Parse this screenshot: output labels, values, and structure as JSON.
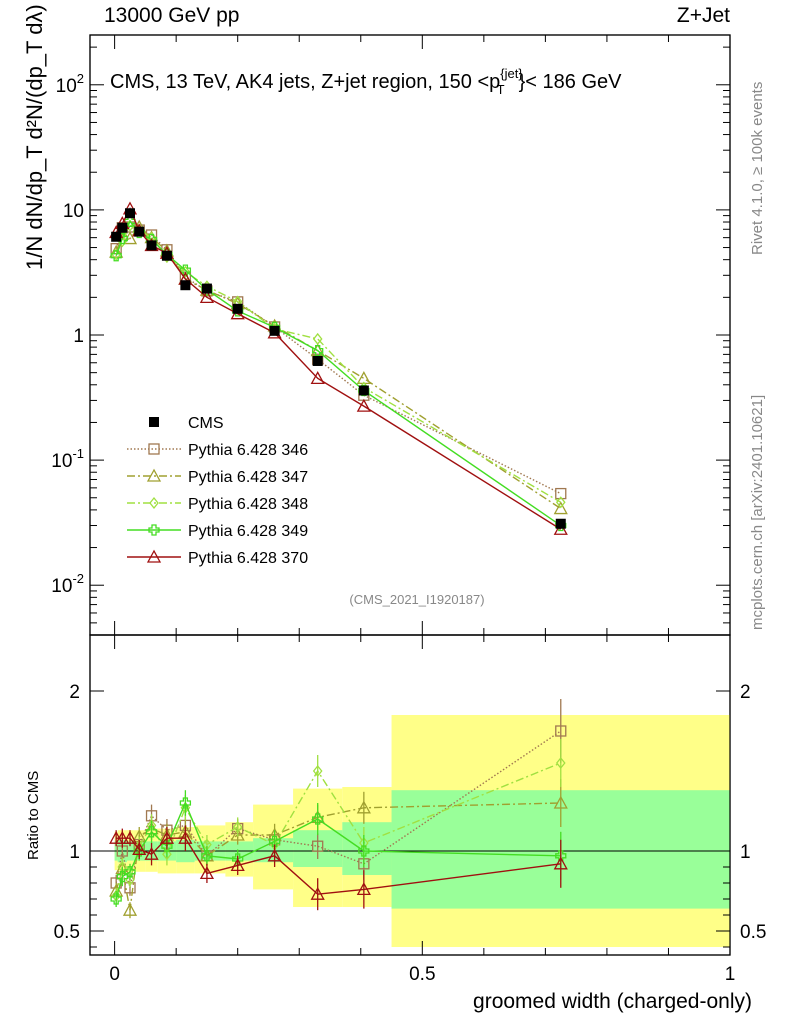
{
  "header": {
    "left": "13000 GeV pp",
    "right": "Z+Jet"
  },
  "side": {
    "rivet": "Rivet 4.1.0, ≥ 100k events",
    "mcplots": "mcplots.cern.ch [arXiv:2401.10621]"
  },
  "watermark": "(CMS_2021_I1920187)",
  "chart_data": {
    "type": "line",
    "title": "CMS, 13 TeV, AK4 jets, Z+jet region, 150 < p_T^{jet} < 186 GeV",
    "xlabel": "groomed width (charged-only)",
    "ylabel": "1/N dN/dp_T  d²N/(dp_T dλ)",
    "ratio_ylabel": "Ratio to CMS",
    "xlim": [
      -0.04,
      1.0
    ],
    "ylim": [
      0.004,
      250
    ],
    "ratio_ylim": [
      0.35,
      2.35
    ],
    "yscale": "log",
    "x_ticks": [
      "0",
      "0.5",
      "1"
    ],
    "y_ticks": [
      "10^{-2}",
      "10^{-1}",
      "1",
      "10",
      "10^{2}"
    ],
    "ratio_ticks": [
      "0.5",
      "1",
      "2"
    ],
    "x": [
      0.0025,
      0.0125,
      0.025,
      0.04,
      0.06,
      0.085,
      0.115,
      0.15,
      0.2,
      0.26,
      0.33,
      0.405,
      0.725
    ],
    "bin_edges": [
      0.0,
      0.005,
      0.02,
      0.03,
      0.05,
      0.07,
      0.1,
      0.13,
      0.18,
      0.225,
      0.29,
      0.37,
      0.45,
      1.0
    ],
    "ratio_band_inner": [
      {
        "lo": 0.94,
        "hi": 1.06
      },
      {
        "lo": 0.93,
        "hi": 1.07
      },
      {
        "lo": 0.94,
        "hi": 1.06
      },
      {
        "lo": 0.94,
        "hi": 1.06
      },
      {
        "lo": 0.94,
        "hi": 1.06
      },
      {
        "lo": 0.94,
        "hi": 1.06
      },
      {
        "lo": 0.93,
        "hi": 1.07
      },
      {
        "lo": 0.94,
        "hi": 1.06
      },
      {
        "lo": 0.94,
        "hi": 1.06
      },
      {
        "lo": 0.93,
        "hi": 1.08
      },
      {
        "lo": 0.9,
        "hi": 1.13
      },
      {
        "lo": 0.85,
        "hi": 1.18
      },
      {
        "lo": 0.64,
        "hi": 1.38
      }
    ],
    "ratio_band_outer": [
      {
        "lo": 0.88,
        "hi": 1.12
      },
      {
        "lo": 0.87,
        "hi": 1.13
      },
      {
        "lo": 0.87,
        "hi": 1.13
      },
      {
        "lo": 0.87,
        "hi": 1.13
      },
      {
        "lo": 0.87,
        "hi": 1.14
      },
      {
        "lo": 0.86,
        "hi": 1.14
      },
      {
        "lo": 0.86,
        "hi": 1.15
      },
      {
        "lo": 0.86,
        "hi": 1.16
      },
      {
        "lo": 0.84,
        "hi": 1.18
      },
      {
        "lo": 0.76,
        "hi": 1.29
      },
      {
        "lo": 0.65,
        "hi": 1.39
      },
      {
        "lo": 0.65,
        "hi": 1.4
      },
      {
        "lo": 0.4,
        "hi": 1.85
      }
    ],
    "series": [
      {
        "name": "CMS",
        "color": "#000000",
        "marker": "square-filled",
        "dash": "",
        "values": [
          6.1,
          7.2,
          9.4,
          6.7,
          5.2,
          4.3,
          2.5,
          2.35,
          1.62,
          1.08,
          0.62,
          0.36,
          0.031
        ],
        "ratio": [
          1,
          1,
          1,
          1,
          1,
          1,
          1,
          1,
          1,
          1,
          1,
          1,
          1
        ],
        "ratio_err": [
          0,
          0,
          0,
          0,
          0,
          0,
          0,
          0,
          0,
          0,
          0,
          0,
          0
        ]
      },
      {
        "name": "Pythia 6.428 346",
        "color": "#a07850",
        "marker": "square-open",
        "dash": "1.5,2",
        "values": [
          4.9,
          7.2,
          7.3,
          6.9,
          6.3,
          4.8,
          2.9,
          2.25,
          1.84,
          1.16,
          0.64,
          0.33,
          0.054
        ],
        "ratio": [
          0.8,
          1.0,
          0.77,
          1.04,
          1.22,
          1.13,
          1.16,
          0.97,
          1.14,
          1.07,
          1.03,
          0.92,
          1.75
        ],
        "ratio_err": [
          0.05,
          0.06,
          0.05,
          0.06,
          0.07,
          0.07,
          0.08,
          0.06,
          0.06,
          0.07,
          0.08,
          0.1,
          0.2
        ]
      },
      {
        "name": "Pythia 6.428 347",
        "color": "#a0a030",
        "marker": "triangle-open",
        "dash": "8,3,2,3",
        "values": [
          4.6,
          6.4,
          5.9,
          7.3,
          6.0,
          4.7,
          2.8,
          2.28,
          1.78,
          1.18,
          0.75,
          0.45,
          0.041
        ],
        "ratio": [
          0.75,
          0.89,
          0.63,
          1.09,
          1.14,
          1.1,
          1.12,
          0.97,
          1.1,
          1.1,
          1.21,
          1.27,
          1.3
        ],
        "ratio_err": [
          0.05,
          0.06,
          0.05,
          0.06,
          0.07,
          0.07,
          0.08,
          0.06,
          0.06,
          0.07,
          0.08,
          0.1,
          0.15
        ]
      },
      {
        "name": "Pythia 6.428 348",
        "color": "#a0e040",
        "marker": "diamond-open",
        "dash": "8,3,2,3",
        "values": [
          4.4,
          5.6,
          7.5,
          6.9,
          6.0,
          4.2,
          3.2,
          2.45,
          1.85,
          1.12,
          0.93,
          0.38,
          0.046
        ],
        "ratio": [
          0.72,
          0.9,
          0.82,
          1.03,
          1.16,
          0.98,
          1.27,
          1.04,
          1.15,
          1.04,
          1.5,
          1.05,
          1.55
        ],
        "ratio_err": [
          0.05,
          0.06,
          0.05,
          0.06,
          0.07,
          0.07,
          0.08,
          0.06,
          0.06,
          0.07,
          0.1,
          0.1,
          0.15
        ]
      },
      {
        "name": "Pythia 6.428 349",
        "color": "#44dd22",
        "marker": "cross-open",
        "dash": "",
        "values": [
          4.3,
          5.9,
          8.1,
          6.6,
          5.8,
          4.4,
          3.3,
          2.3,
          1.56,
          1.15,
          0.75,
          0.36,
          0.03
        ],
        "ratio": [
          0.7,
          0.84,
          0.87,
          1.0,
          1.12,
          1.03,
          1.3,
          0.97,
          0.95,
          1.06,
          1.2,
          1.0,
          0.97
        ],
        "ratio_err": [
          0.05,
          0.06,
          0.05,
          0.06,
          0.07,
          0.07,
          0.08,
          0.06,
          0.06,
          0.07,
          0.1,
          0.1,
          0.15
        ]
      },
      {
        "name": "Pythia 6.428 370",
        "color": "#a01010",
        "marker": "triangle-open",
        "dash": "",
        "values": [
          6.6,
          7.8,
          10.2,
          6.8,
          5.2,
          4.5,
          2.8,
          2.0,
          1.48,
          1.04,
          0.45,
          0.27,
          0.028
        ],
        "ratio": [
          1.08,
          1.08,
          1.08,
          1.01,
          0.98,
          1.08,
          1.08,
          0.86,
          0.91,
          0.97,
          0.73,
          0.76,
          0.92
        ],
        "ratio_err": [
          0.05,
          0.06,
          0.05,
          0.06,
          0.07,
          0.07,
          0.08,
          0.06,
          0.06,
          0.07,
          0.1,
          0.12,
          0.15
        ]
      }
    ]
  }
}
